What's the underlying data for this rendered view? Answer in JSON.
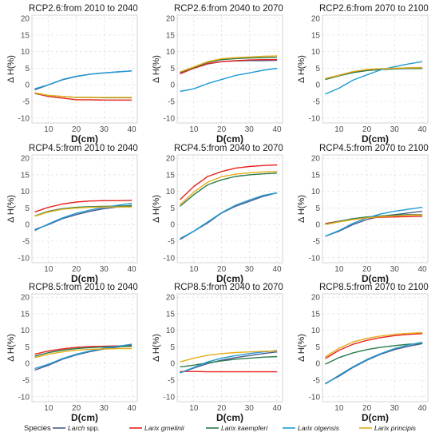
{
  "chart_data": {
    "type": "line",
    "x_label": "D(cm)",
    "y_label": "Δ H(%)",
    "xlim": [
      4,
      42
    ],
    "ylim": [
      -11.5,
      21
    ],
    "xticks": [
      10,
      20,
      30,
      40
    ],
    "yticks": [
      -10,
      -5,
      0,
      5,
      10,
      15,
      20
    ],
    "grid": true,
    "legend": {
      "position": "bottom",
      "title": "Species",
      "entries": [
        {
          "main": "Larch",
          "suffix": " spp.",
          "italic_main": true
        },
        {
          "main": "Larix gmelinii",
          "suffix": "",
          "italic_main": true
        },
        {
          "main": "Larix kaempferi",
          "suffix": "",
          "italic_main": true
        },
        {
          "main": "Larix olgensis",
          "suffix": "",
          "italic_main": true
        },
        {
          "main": "Larix principis",
          "suffix": "",
          "italic_main": true
        }
      ]
    },
    "series_colors": [
      "#4a5a8c",
      "#e8231f",
      "#2b7a4a",
      "#1f9bd4",
      "#e6ad1a"
    ],
    "x": [
      5,
      10,
      15,
      20,
      25,
      30,
      35,
      40
    ],
    "panels": [
      {
        "title": "RCP2.6:from 2010 to 2040",
        "series": [
          [
            -1.5,
            0.0,
            1.5,
            2.5,
            3.2,
            3.6,
            3.9,
            4.2
          ],
          [
            -2.6,
            -3.5,
            -4.0,
            -4.5,
            -4.5,
            -4.6,
            -4.6,
            -4.6
          ],
          [
            -2.5,
            -3.2,
            -3.5,
            -3.8,
            -3.8,
            -3.9,
            -3.9,
            -3.9
          ],
          [
            -1.2,
            0.0,
            1.6,
            2.6,
            3.2,
            3.6,
            3.9,
            4.2
          ],
          [
            -2.4,
            -3.2,
            -3.5,
            -3.8,
            -3.8,
            -3.8,
            -3.8,
            -3.8
          ]
        ]
      },
      {
        "title": "RCP2.6:from 2040 to 2070",
        "series": [
          [
            3.6,
            5.0,
            6.3,
            7.0,
            7.2,
            7.3,
            7.3,
            7.4
          ],
          [
            3.3,
            5.0,
            6.4,
            7.0,
            7.3,
            7.5,
            7.6,
            7.6
          ],
          [
            3.8,
            5.2,
            6.8,
            7.6,
            7.9,
            8.1,
            8.2,
            8.3
          ],
          [
            -2.0,
            -1.2,
            0.4,
            1.6,
            2.8,
            3.6,
            4.4,
            5.0
          ],
          [
            3.9,
            5.4,
            7.0,
            7.9,
            8.2,
            8.4,
            8.6,
            8.7
          ]
        ]
      },
      {
        "title": "RCP2.6:from 2070 to 2100",
        "series": [
          [
            1.8,
            2.8,
            3.8,
            4.4,
            4.8,
            5.0,
            5.1,
            5.2
          ],
          [
            1.7,
            2.9,
            3.9,
            4.5,
            4.7,
            4.9,
            5.0,
            5.0
          ],
          [
            1.6,
            2.7,
            3.7,
            4.3,
            4.6,
            4.8,
            4.9,
            5.0
          ],
          [
            -2.8,
            -1.0,
            1.4,
            3.0,
            4.5,
            5.5,
            6.3,
            7.0
          ],
          [
            1.9,
            2.9,
            4.0,
            4.6,
            4.9,
            5.0,
            5.1,
            5.2
          ]
        ]
      },
      {
        "title": "RCP4.5:from 2010 to 2040",
        "series": [
          [
            -1.5,
            0.0,
            1.8,
            3.0,
            4.0,
            4.8,
            5.3,
            5.8
          ],
          [
            3.8,
            5.2,
            6.2,
            6.8,
            7.1,
            7.2,
            7.2,
            7.3
          ],
          [
            2.6,
            4.0,
            4.8,
            5.2,
            5.4,
            5.5,
            5.6,
            5.6
          ],
          [
            -1.8,
            0.2,
            2.0,
            3.4,
            4.4,
            5.2,
            5.8,
            6.4
          ],
          [
            2.5,
            3.8,
            4.6,
            5.0,
            5.2,
            5.3,
            5.3,
            5.3
          ]
        ]
      },
      {
        "title": "RCP4.5:from 2040 to 2070",
        "series": [
          [
            -4.5,
            -2.0,
            0.5,
            3.5,
            5.5,
            7.0,
            8.5,
            9.6
          ],
          [
            7.5,
            11.5,
            14.5,
            16.0,
            17.0,
            17.5,
            17.8,
            18.0
          ],
          [
            5.5,
            9.0,
            12.0,
            13.5,
            14.5,
            15.0,
            15.3,
            15.5
          ],
          [
            -4.2,
            -2.0,
            0.8,
            3.6,
            5.8,
            7.4,
            8.8,
            9.6
          ],
          [
            6.0,
            9.8,
            12.8,
            14.4,
            15.2,
            15.6,
            15.9,
            16.0
          ]
        ]
      },
      {
        "title": "RCP4.5:from 2070 to 2100",
        "series": [
          [
            -3.5,
            -2.0,
            0.0,
            1.5,
            2.5,
            3.0,
            3.5,
            4.0
          ],
          [
            0.3,
            1.0,
            1.6,
            2.0,
            2.2,
            2.3,
            2.4,
            2.5
          ],
          [
            0.1,
            1.0,
            1.8,
            2.3,
            2.6,
            2.8,
            3.0,
            3.0
          ],
          [
            -3.5,
            -1.8,
            0.4,
            2.0,
            3.2,
            4.0,
            4.6,
            5.2
          ],
          [
            0.0,
            0.8,
            1.5,
            2.0,
            2.4,
            2.6,
            2.8,
            2.9
          ]
        ]
      },
      {
        "title": "RCP8.5:from 2010 to 2040",
        "series": [
          [
            -2.0,
            -0.5,
            1.3,
            2.6,
            3.6,
            4.4,
            5.0,
            5.6
          ],
          [
            2.8,
            3.8,
            4.4,
            4.9,
            5.1,
            5.2,
            5.3,
            5.3
          ],
          [
            2.2,
            3.3,
            4.0,
            4.5,
            4.8,
            5.0,
            5.1,
            5.2
          ],
          [
            -1.5,
            -0.2,
            1.5,
            2.8,
            3.8,
            4.6,
            5.2,
            5.8
          ],
          [
            1.8,
            2.8,
            3.5,
            4.0,
            4.3,
            4.4,
            4.5,
            4.5
          ]
        ]
      },
      {
        "title": "RCP8.5:from 2040 to 2070",
        "series": [
          [
            -2.8,
            -1.4,
            0.0,
            1.0,
            1.8,
            2.4,
            3.0,
            3.5
          ],
          [
            -2.4,
            -2.4,
            -2.5,
            -2.5,
            -2.5,
            -2.5,
            -2.5,
            -2.5
          ],
          [
            -1.0,
            -0.5,
            0.2,
            0.8,
            1.3,
            1.6,
            1.9,
            2.1
          ],
          [
            -2.8,
            -1.2,
            0.5,
            1.6,
            2.4,
            3.0,
            3.5,
            3.9
          ],
          [
            0.5,
            1.6,
            2.5,
            3.0,
            3.3,
            3.5,
            3.7,
            3.8
          ]
        ]
      },
      {
        "title": "RCP8.5:from 2070 to 2100",
        "series": [
          [
            -6.0,
            -3.8,
            -1.2,
            1.0,
            2.8,
            4.2,
            5.2,
            6.0
          ],
          [
            1.5,
            4.0,
            5.8,
            7.0,
            7.8,
            8.4,
            8.8,
            9.0
          ],
          [
            -0.2,
            1.8,
            3.2,
            4.2,
            4.9,
            5.4,
            5.8,
            6.0
          ],
          [
            -6.2,
            -3.5,
            -1.0,
            1.2,
            3.0,
            4.5,
            5.6,
            6.4
          ],
          [
            2.0,
            4.6,
            6.5,
            7.6,
            8.3,
            8.8,
            9.1,
            9.3
          ]
        ]
      }
    ]
  }
}
